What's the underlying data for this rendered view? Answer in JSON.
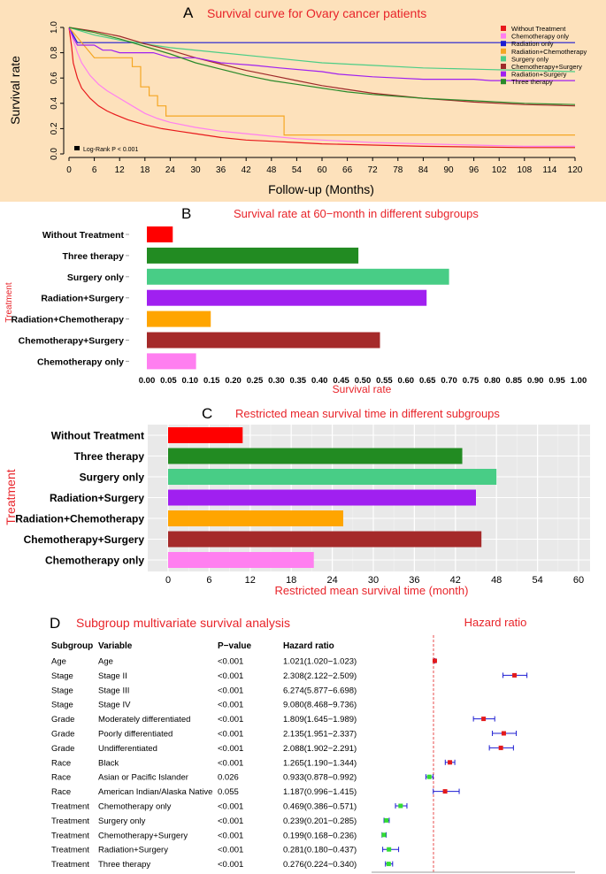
{
  "colors": {
    "panelA_bg": "#fde1bb",
    "panelC_bg": "#e9e9e9",
    "title_red": "#e8242a",
    "forest_ref": "#e84c4c"
  },
  "chart_data": [
    {
      "id": "A",
      "type": "line",
      "panel_letter": "A",
      "title": "Survival curve for Ovary cancer patients",
      "xlabel": "Follow-up (Months)",
      "ylabel": "Survival rate",
      "xlim": [
        0,
        120
      ],
      "ylim": [
        0,
        1
      ],
      "x_ticks": [
        0,
        6,
        12,
        18,
        24,
        30,
        36,
        42,
        48,
        54,
        60,
        66,
        72,
        78,
        84,
        90,
        96,
        102,
        108,
        114,
        120
      ],
      "y_ticks": [
        "0.0",
        "0.2",
        "0.4",
        "0.6",
        "0.8",
        "1.0"
      ],
      "annotation": "Log-Rank P < 0.001",
      "legend_position": "top-right",
      "series": [
        {
          "name": "Without Treatment",
          "color": "#e8191c",
          "points": [
            [
              0,
              1
            ],
            [
              0.6,
              0.85
            ],
            [
              1,
              0.72
            ],
            [
              2,
              0.6
            ],
            [
              3,
              0.52
            ],
            [
              5,
              0.44
            ],
            [
              7,
              0.38
            ],
            [
              9,
              0.34
            ],
            [
              11,
              0.31
            ],
            [
              14,
              0.27
            ],
            [
              18,
              0.23
            ],
            [
              22,
              0.2
            ],
            [
              26,
              0.18
            ],
            [
              30,
              0.16
            ],
            [
              36,
              0.13
            ],
            [
              42,
              0.11
            ],
            [
              48,
              0.1
            ],
            [
              54,
              0.09
            ],
            [
              60,
              0.08
            ],
            [
              72,
              0.07
            ],
            [
              84,
              0.06
            ],
            [
              96,
              0.055
            ],
            [
              108,
              0.05
            ],
            [
              120,
              0.05
            ]
          ]
        },
        {
          "name": "Chemotherapy only",
          "color": "#ff7ff0",
          "points": [
            [
              0,
              1
            ],
            [
              1,
              0.9
            ],
            [
              2,
              0.8
            ],
            [
              3,
              0.72
            ],
            [
              5,
              0.62
            ],
            [
              7,
              0.55
            ],
            [
              9,
              0.5
            ],
            [
              12,
              0.44
            ],
            [
              15,
              0.38
            ],
            [
              18,
              0.32
            ],
            [
              21,
              0.28
            ],
            [
              24,
              0.25
            ],
            [
              30,
              0.21
            ],
            [
              36,
              0.18
            ],
            [
              42,
              0.16
            ],
            [
              48,
              0.14
            ],
            [
              54,
              0.12
            ],
            [
              60,
              0.11
            ],
            [
              72,
              0.09
            ],
            [
              84,
              0.08
            ],
            [
              96,
              0.07
            ],
            [
              108,
              0.06
            ],
            [
              120,
              0.06
            ]
          ]
        },
        {
          "name": "Radiation only",
          "color": "#1c1cd2",
          "points": [
            [
              0,
              1
            ],
            [
              2,
              0.88
            ],
            [
              120,
              0.88
            ]
          ]
        },
        {
          "name": "Radiation+Chemotherapy",
          "color": "#f5a623",
          "points": [
            [
              0,
              1
            ],
            [
              2,
              0.92
            ],
            [
              4,
              0.84
            ],
            [
              6,
              0.76
            ],
            [
              12,
              0.76
            ],
            [
              15,
              0.76
            ],
            [
              15,
              0.69
            ],
            [
              17,
              0.69
            ],
            [
              17,
              0.53
            ],
            [
              19,
              0.53
            ],
            [
              19,
              0.46
            ],
            [
              21,
              0.46
            ],
            [
              21,
              0.38
            ],
            [
              23,
              0.38
            ],
            [
              23,
              0.3
            ],
            [
              51,
              0.3
            ],
            [
              51,
              0.15
            ],
            [
              120,
              0.15
            ]
          ]
        },
        {
          "name": "Surgery only",
          "color": "#4ccd86",
          "points": [
            [
              0,
              1
            ],
            [
              6,
              0.94
            ],
            [
              12,
              0.9
            ],
            [
              24,
              0.84
            ],
            [
              36,
              0.8
            ],
            [
              48,
              0.76
            ],
            [
              60,
              0.72
            ],
            [
              72,
              0.7
            ],
            [
              84,
              0.68
            ],
            [
              96,
              0.67
            ],
            [
              108,
              0.66
            ],
            [
              120,
              0.65
            ]
          ]
        },
        {
          "name": "Chemotherapy+Surgery",
          "color": "#9e2a2a",
          "points": [
            [
              0,
              1
            ],
            [
              6,
              0.97
            ],
            [
              12,
              0.93
            ],
            [
              18,
              0.87
            ],
            [
              24,
              0.82
            ],
            [
              30,
              0.76
            ],
            [
              36,
              0.71
            ],
            [
              42,
              0.66
            ],
            [
              48,
              0.62
            ],
            [
              54,
              0.58
            ],
            [
              60,
              0.54
            ],
            [
              66,
              0.51
            ],
            [
              72,
              0.48
            ],
            [
              84,
              0.44
            ],
            [
              96,
              0.41
            ],
            [
              108,
              0.39
            ],
            [
              120,
              0.38
            ]
          ]
        },
        {
          "name": "Radiation+Surgery",
          "color": "#a020f0",
          "points": [
            [
              0,
              1
            ],
            [
              1,
              0.92
            ],
            [
              2,
              0.86
            ],
            [
              6,
              0.86
            ],
            [
              8,
              0.82
            ],
            [
              10,
              0.82
            ],
            [
              12,
              0.8
            ],
            [
              20,
              0.8
            ],
            [
              24,
              0.76
            ],
            [
              30,
              0.76
            ],
            [
              36,
              0.72
            ],
            [
              44,
              0.7
            ],
            [
              50,
              0.68
            ],
            [
              60,
              0.65
            ],
            [
              64,
              0.63
            ],
            [
              72,
              0.61
            ],
            [
              78,
              0.6
            ],
            [
              84,
              0.59
            ],
            [
              96,
              0.59
            ],
            [
              100,
              0.58
            ],
            [
              120,
              0.58
            ]
          ]
        },
        {
          "name": "Three therapy",
          "color": "#2a8a2a",
          "points": [
            [
              0,
              1
            ],
            [
              6,
              0.96
            ],
            [
              12,
              0.91
            ],
            [
              18,
              0.85
            ],
            [
              24,
              0.79
            ],
            [
              30,
              0.72
            ],
            [
              36,
              0.67
            ],
            [
              42,
              0.62
            ],
            [
              48,
              0.58
            ],
            [
              54,
              0.55
            ],
            [
              60,
              0.52
            ],
            [
              66,
              0.49
            ],
            [
              72,
              0.47
            ],
            [
              84,
              0.44
            ],
            [
              96,
              0.42
            ],
            [
              108,
              0.4
            ],
            [
              120,
              0.39
            ]
          ]
        }
      ]
    },
    {
      "id": "B",
      "type": "bar",
      "orientation": "horizontal",
      "panel_letter": "B",
      "title": "Survival rate at 60−month in different subgroups",
      "xlabel": "Survival rate",
      "ylabel": "Treatment",
      "xlim": [
        0,
        1
      ],
      "x_ticks": [
        "0.00",
        "0.05",
        "0.10",
        "0.15",
        "0.20",
        "0.25",
        "0.30",
        "0.35",
        "0.40",
        "0.45",
        "0.50",
        "0.55",
        "0.60",
        "0.65",
        "0.70",
        "0.75",
        "0.80",
        "0.85",
        "0.90",
        "0.95",
        "1.00"
      ],
      "categories": [
        "Without Treatment",
        "Three therapy",
        "Surgery only",
        "Radiation+Surgery",
        "Radiation+Chemotherapy",
        "Chemotherapy+Surgery",
        "Chemotherapy only"
      ],
      "values": [
        0.06,
        0.49,
        0.7,
        0.648,
        0.148,
        0.54,
        0.114
      ],
      "colors": [
        "#ff0000",
        "#228b22",
        "#48cd86",
        "#a020f0",
        "#ffa500",
        "#a52a2a",
        "#ff7ff0"
      ]
    },
    {
      "id": "C",
      "type": "bar",
      "orientation": "horizontal",
      "panel_letter": "C",
      "title": "Restricted mean survival time in different subgroups",
      "xlabel": "Restricted mean survival time (month)",
      "ylabel": "Treatment",
      "xlim": [
        0,
        60
      ],
      "x_ticks": [
        "0",
        "6",
        "12",
        "18",
        "24",
        "30",
        "36",
        "42",
        "48",
        "54",
        "60"
      ],
      "categories": [
        "Without Treatment",
        "Three therapy",
        "Surgery only",
        "Radiation+Surgery",
        "Radiation+Chemotherapy",
        "Chemotherapy+Surgery",
        "Chemotherapy only"
      ],
      "values": [
        10.9,
        43.0,
        48.0,
        45.0,
        25.6,
        45.8,
        21.3
      ],
      "colors": [
        "#ff0000",
        "#228b22",
        "#48cd86",
        "#a020f0",
        "#ffa500",
        "#a52a2a",
        "#ff7ff0"
      ],
      "grid": true
    },
    {
      "id": "D",
      "type": "table",
      "panel_letter": "D",
      "title": "Subgroup multivariate survival analysis",
      "forest_title": "Hazard ratio",
      "headers": [
        "Subgroup",
        "Variable",
        "P−value",
        "Hazard ratio"
      ],
      "reference_value": 1,
      "rows": [
        {
          "subgroup": "Age",
          "variable": "Age",
          "p": "<0.001",
          "hr_text": "1.021(1.020−1.023)",
          "hr": 1.021,
          "lo": 1.02,
          "hi": 1.023
        },
        {
          "subgroup": "Stage",
          "variable": "Stage II",
          "p": "<0.001",
          "hr_text": "2.308(2.122−2.509)",
          "hr": 2.308,
          "lo": 2.122,
          "hi": 2.509
        },
        {
          "subgroup": "Stage",
          "variable": "Stage III",
          "p": "<0.001",
          "hr_text": "6.274(5.877−6.698)",
          "hr": 6.274,
          "lo": 5.877,
          "hi": 6.698
        },
        {
          "subgroup": "Stage",
          "variable": "Stage IV",
          "p": "<0.001",
          "hr_text": "9.080(8.468−9.736)",
          "hr": 9.08,
          "lo": 8.468,
          "hi": 9.736
        },
        {
          "subgroup": "Grade",
          "variable": "Moderately differentiated",
          "p": "<0.001",
          "hr_text": "1.809(1.645−1.989)",
          "hr": 1.809,
          "lo": 1.645,
          "hi": 1.989
        },
        {
          "subgroup": "Grade",
          "variable": "Poorly differentiated",
          "p": "<0.001",
          "hr_text": "2.135(1.951−2.337)",
          "hr": 2.135,
          "lo": 1.951,
          "hi": 2.337
        },
        {
          "subgroup": "Grade",
          "variable": "Undifferentiated",
          "p": "<0.001",
          "hr_text": "2.088(1.902−2.291)",
          "hr": 2.088,
          "lo": 1.902,
          "hi": 2.291
        },
        {
          "subgroup": "Race",
          "variable": "Black",
          "p": "<0.001",
          "hr_text": "1.265(1.190−1.344)",
          "hr": 1.265,
          "lo": 1.19,
          "hi": 1.344
        },
        {
          "subgroup": "Race",
          "variable": "Asian or Pacific Islander",
          "p": "0.026",
          "hr_text": "0.933(0.878−0.992)",
          "hr": 0.933,
          "lo": 0.878,
          "hi": 0.992
        },
        {
          "subgroup": "Race",
          "variable": "American Indian/Alaska Native",
          "p": "0.055",
          "hr_text": "1.187(0.996−1.415)",
          "hr": 1.187,
          "lo": 0.996,
          "hi": 1.415
        },
        {
          "subgroup": "Treatment",
          "variable": "Chemotherapy only",
          "p": "<0.001",
          "hr_text": "0.469(0.386−0.571)",
          "hr": 0.469,
          "lo": 0.386,
          "hi": 0.571
        },
        {
          "subgroup": "Treatment",
          "variable": "Surgery only",
          "p": "<0.001",
          "hr_text": "0.239(0.201−0.285)",
          "hr": 0.239,
          "lo": 0.201,
          "hi": 0.285
        },
        {
          "subgroup": "Treatment",
          "variable": "Chemotherapy+Surgery",
          "p": "<0.001",
          "hr_text": "0.199(0.168−0.236)",
          "hr": 0.199,
          "lo": 0.168,
          "hi": 0.236
        },
        {
          "subgroup": "Treatment",
          "variable": "Radiation+Surgery",
          "p": "<0.001",
          "hr_text": "0.281(0.180−0.437)",
          "hr": 0.281,
          "lo": 0.18,
          "hi": 0.437
        },
        {
          "subgroup": "Treatment",
          "variable": "Three therapy",
          "p": "<0.001",
          "hr_text": "0.276(0.224−0.340)",
          "hr": 0.276,
          "lo": 0.224,
          "hi": 0.34
        }
      ]
    }
  ]
}
